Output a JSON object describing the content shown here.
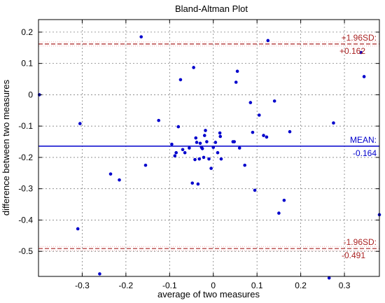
{
  "chart_data": {
    "type": "scatter",
    "title": "Bland-Altman Plot",
    "xlabel": "average of two measures",
    "ylabel": "difference between two measures",
    "xlim": [
      -0.4,
      0.38
    ],
    "ylim": [
      -0.58,
      0.24
    ],
    "x_ticks": [
      -0.3,
      -0.2,
      -0.1,
      0,
      0.1,
      0.2,
      0.3
    ],
    "x_tick_labels": [
      "-0.3",
      "-0.2",
      "-0.1",
      "0",
      "0.1",
      "0.2",
      "0.3"
    ],
    "y_ticks": [
      -0.5,
      -0.4,
      -0.3,
      -0.2,
      -0.1,
      0,
      0.1,
      0.2
    ],
    "y_tick_labels": [
      "-0.5",
      "-0.4",
      "-0.3",
      "-0.2",
      "-0.1",
      "0",
      "0.1",
      "0.2"
    ],
    "grid": true,
    "point_color": "#0000cc",
    "mean_line": {
      "value": -0.164,
      "label": "MEAN:",
      "value_label": "-0.164",
      "color": "#0000cc"
    },
    "upper_loa": {
      "value": 0.162,
      "label": "+1.96SD:",
      "value_label": "+0.162",
      "color": "#aa2222"
    },
    "lower_loa": {
      "value": -0.491,
      "label": "-1.96SD:",
      "value_label": "-0.491",
      "color": "#aa2222"
    },
    "points": [
      [
        -0.398,
        0.0
      ],
      [
        -0.305,
        -0.092
      ],
      [
        -0.31,
        -0.428
      ],
      [
        -0.26,
        -0.572
      ],
      [
        -0.235,
        -0.253
      ],
      [
        -0.215,
        -0.272
      ],
      [
        -0.165,
        0.185
      ],
      [
        -0.155,
        -0.225
      ],
      [
        -0.125,
        -0.082
      ],
      [
        -0.095,
        -0.158
      ],
      [
        -0.088,
        -0.195
      ],
      [
        -0.085,
        -0.185
      ],
      [
        -0.08,
        -0.102
      ],
      [
        -0.075,
        0.048
      ],
      [
        -0.07,
        -0.175
      ],
      [
        -0.065,
        -0.185
      ],
      [
        -0.055,
        -0.17
      ],
      [
        -0.048,
        -0.282
      ],
      [
        -0.045,
        0.087
      ],
      [
        -0.042,
        -0.207
      ],
      [
        -0.04,
        -0.138
      ],
      [
        -0.038,
        -0.152
      ],
      [
        -0.035,
        -0.285
      ],
      [
        -0.032,
        -0.205
      ],
      [
        -0.03,
        -0.155
      ],
      [
        -0.027,
        -0.168
      ],
      [
        -0.025,
        -0.172
      ],
      [
        -0.022,
        -0.2
      ],
      [
        -0.02,
        -0.13
      ],
      [
        -0.018,
        -0.114
      ],
      [
        -0.015,
        -0.15
      ],
      [
        -0.01,
        -0.205
      ],
      [
        -0.005,
        -0.235
      ],
      [
        0.0,
        -0.168
      ],
      [
        0.005,
        -0.152
      ],
      [
        0.01,
        -0.185
      ],
      [
        0.015,
        -0.122
      ],
      [
        0.016,
        -0.133
      ],
      [
        0.018,
        -0.205
      ],
      [
        0.045,
        -0.15
      ],
      [
        0.048,
        -0.15
      ],
      [
        0.052,
        0.04
      ],
      [
        0.055,
        0.075
      ],
      [
        0.06,
        -0.17
      ],
      [
        0.072,
        -0.225
      ],
      [
        0.085,
        -0.025
      ],
      [
        0.09,
        -0.12
      ],
      [
        0.095,
        -0.305
      ],
      [
        0.105,
        -0.065
      ],
      [
        0.115,
        -0.13
      ],
      [
        0.122,
        -0.135
      ],
      [
        0.125,
        0.173
      ],
      [
        0.14,
        -0.02
      ],
      [
        0.15,
        -0.378
      ],
      [
        0.162,
        -0.337
      ],
      [
        0.175,
        -0.118
      ],
      [
        0.265,
        -0.585
      ],
      [
        0.275,
        -0.09
      ],
      [
        0.338,
        0.135
      ],
      [
        0.345,
        0.058
      ],
      [
        0.38,
        -0.383
      ]
    ]
  }
}
